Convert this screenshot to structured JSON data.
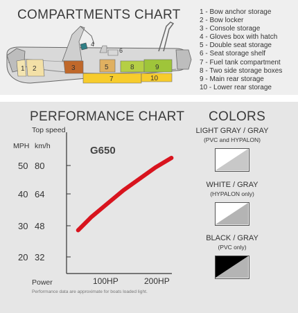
{
  "compartments": {
    "title": "COMPARTMENTS CHART",
    "legend": [
      "1 - Bow anchor storage",
      "2 - Bow locker",
      "3 - Console storage",
      "4 - Gloves box with hatch",
      "5 - Double seat storage",
      "6 - Seat storage shelf",
      "7 - Fuel tank compartment",
      "8 - Two side storage boxes",
      "9 - Main rear storage",
      "10 - Lower rear storage"
    ],
    "numbers": [
      "1",
      "2",
      "3",
      "4",
      "5",
      "6",
      "7",
      "8",
      "9",
      "10"
    ]
  },
  "performance": {
    "title": "PERFORMANCE CHART",
    "model": "G650",
    "top_speed_label": "Top speed",
    "unit_mph": "MPH",
    "unit_kmh": "km/h",
    "power_label": "Power",
    "note": "Performance data are approximate for boats loaded light."
  },
  "chart_data": {
    "type": "line",
    "title": "PERFORMANCE CHART",
    "xlabel": "Power",
    "ylabel": "Top speed",
    "x_ticks": [
      "100HP",
      "200HP"
    ],
    "y_ticks_mph": [
      "20",
      "30",
      "40",
      "50"
    ],
    "y_ticks_kmh": [
      "32",
      "48",
      "64",
      "80"
    ],
    "xlim": [
      40,
      230
    ],
    "ylim_kmh": [
      26,
      90
    ],
    "series": [
      {
        "name": "G650",
        "x": [
          45,
          70,
          100,
          130,
          160,
          190,
          220
        ],
        "y_kmh": [
          46,
          53,
          60,
          67,
          73,
          79,
          84
        ]
      }
    ],
    "line_color": "#d8141e",
    "grid": false
  },
  "colors": {
    "title": "COLORS",
    "options": [
      {
        "name": "LIGHT GRAY / GRAY",
        "note": "(PVC and HYPALON)",
        "top": "#ffffff",
        "bottom": "#c8c8c8"
      },
      {
        "name": "WHITE / GRAY",
        "note": "(HYPALON only)",
        "top": "#ffffff",
        "bottom": "#b4b4b4"
      },
      {
        "name": "BLACK / GRAY",
        "note": "(PVC only)",
        "top": "#000000",
        "bottom": "#b4b4b4"
      }
    ]
  }
}
